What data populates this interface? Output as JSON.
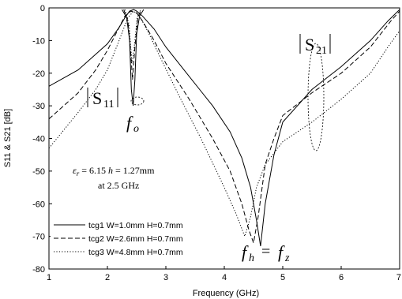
{
  "chart_data": {
    "type": "line",
    "xlabel": "Frequency (GHz)",
    "ylabel": "S11 & S21 [dB]",
    "xlim": [
      1,
      7
    ],
    "ylim": [
      -80,
      0
    ],
    "x_ticks": [
      "1",
      "2",
      "3",
      "4",
      "5",
      "6",
      "7"
    ],
    "y_ticks": [
      "0",
      "-10",
      "-20",
      "-30",
      "-40",
      "-50",
      "-60",
      "-70",
      "-80"
    ],
    "grid": false,
    "legend_position": "bottom-left",
    "series": [
      {
        "name": "tcg1 W=1.0mm H=0.7mm",
        "style": "solid",
        "s21": {
          "x": [
            1.0,
            1.5,
            2.0,
            2.2,
            2.3,
            2.38,
            2.45,
            2.5,
            2.6,
            2.8,
            3.0,
            3.4,
            3.8,
            4.1,
            4.3,
            4.45,
            4.55,
            4.62,
            4.7,
            4.85,
            5.0,
            5.5,
            6.0,
            6.5,
            6.8,
            7.0
          ],
          "y": [
            -24,
            -19,
            -11,
            -6,
            -3,
            -1,
            -0.5,
            -1,
            -2.5,
            -6.5,
            -12,
            -21,
            -30,
            -38,
            -46,
            -55,
            -65,
            -73,
            -60,
            -45,
            -35,
            -25,
            -18,
            -10,
            -4,
            -0.5
          ]
        },
        "s11": {
          "x": [
            2.25,
            2.33,
            2.38,
            2.41,
            2.44,
            2.47,
            2.5,
            2.55,
            2.62
          ],
          "y": [
            -0.5,
            -3,
            -10,
            -25,
            -30,
            -22,
            -8,
            -2.5,
            -0.5
          ]
        }
      },
      {
        "name": "tcg2 W=2.6mm H=0.7mm",
        "style": "dashed",
        "s21": {
          "x": [
            1.0,
            1.5,
            1.8,
            2.0,
            2.2,
            2.3,
            2.4,
            2.5,
            2.6,
            2.8,
            3.0,
            3.4,
            3.8,
            4.1,
            4.3,
            4.42,
            4.5,
            4.58,
            4.7,
            4.85,
            5.0,
            5.5,
            6.0,
            6.5,
            6.85,
            7.0
          ],
          "y": [
            -34,
            -26,
            -19,
            -13,
            -6,
            -2.5,
            -1,
            -1.5,
            -4,
            -10,
            -17,
            -28,
            -40,
            -50,
            -60,
            -68,
            -72,
            -64,
            -48,
            -40,
            -33,
            -26,
            -20,
            -12,
            -4,
            -1
          ]
        },
        "s11": {
          "x": [
            2.28,
            2.35,
            2.4,
            2.43,
            2.47,
            2.52,
            2.58
          ],
          "y": [
            -0.5,
            -4,
            -14,
            -22,
            -12,
            -3,
            -0.5
          ]
        }
      },
      {
        "name": "tcg3 W=4.8mm H=0.7mm",
        "style": "dotted",
        "s21": {
          "x": [
            1.0,
            1.5,
            1.8,
            2.0,
            2.2,
            2.35,
            2.45,
            2.55,
            2.7,
            2.9,
            3.2,
            3.6,
            4.0,
            4.2,
            4.35,
            4.45,
            4.55,
            4.7,
            5.0,
            5.5,
            6.0,
            6.5,
            6.8,
            7.0
          ],
          "y": [
            -43,
            -32,
            -25,
            -19,
            -10,
            -3,
            -1,
            -2.5,
            -7.5,
            -15,
            -26,
            -40,
            -55,
            -63,
            -70,
            -64,
            -55,
            -48,
            -41,
            -35,
            -28,
            -20,
            -12,
            -7
          ]
        },
        "s11": {
          "x": [
            2.3,
            2.37,
            2.42,
            2.46,
            2.51,
            2.57
          ],
          "y": [
            -0.5,
            -5,
            -17,
            -12,
            -3,
            -0.5
          ]
        }
      }
    ],
    "annotations": {
      "s11_label": "S",
      "s11_sub": "11",
      "s21_label": "S",
      "s21_sub": "21",
      "fo_main": "f",
      "fo_sub": "o",
      "fh_main": "f",
      "fh_sub": "h",
      "equals": "=",
      "fz_main": "f",
      "fz_sub": "z",
      "params_eps": "ε",
      "params_eps_sub": "r",
      "params_line1_rest": " = 6.15 ",
      "params_h": "h",
      "params_line1_tail": " = 1.27mm",
      "params_line2": "at 2.5 GHz"
    }
  }
}
